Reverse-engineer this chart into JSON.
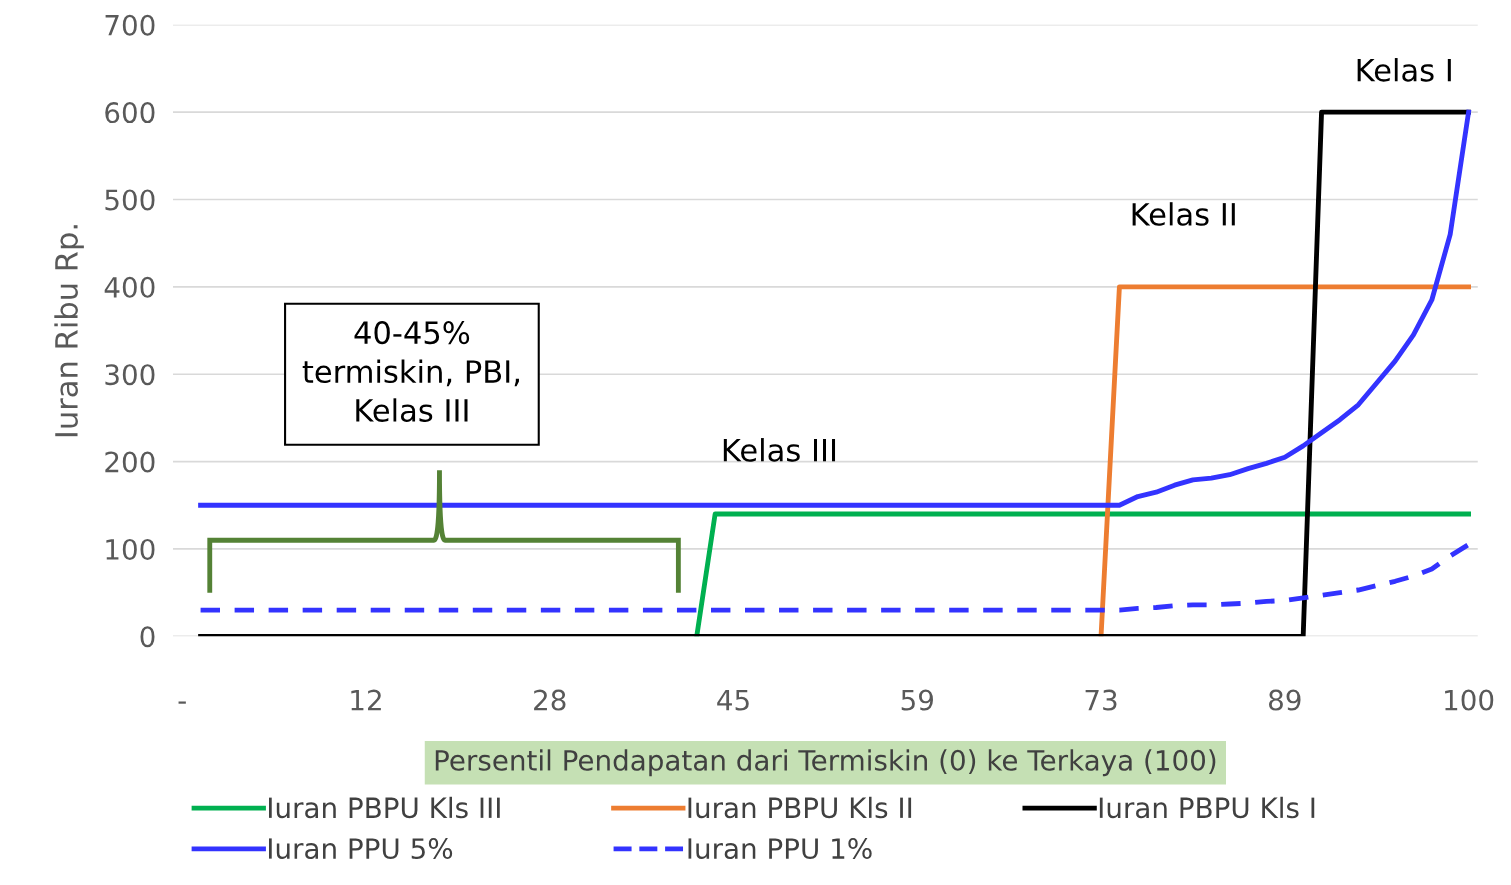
{
  "chart_data": {
    "type": "line",
    "xlabel": "Persentil Pendapatan dari Termiskin (0) ke Terkaya (100)",
    "ylabel": "Iuran Ribu Rp.",
    "categories": [
      "-",
      null,
      null,
      null,
      null,
      null,
      null,
      null,
      null,
      null,
      "12",
      null,
      null,
      null,
      null,
      null,
      null,
      null,
      null,
      null,
      "28",
      null,
      null,
      null,
      null,
      null,
      null,
      null,
      null,
      null,
      "45",
      null,
      null,
      null,
      null,
      null,
      null,
      null,
      null,
      null,
      "59",
      null,
      null,
      null,
      null,
      null,
      null,
      null,
      null,
      null,
      "73",
      null,
      null,
      null,
      null,
      null,
      null,
      null,
      null,
      null,
      "89",
      null,
      null,
      null,
      null,
      null,
      null,
      null,
      null,
      null,
      "100"
    ],
    "series": [
      {
        "name": "Iuran PBPU Kls III",
        "color": "#00b050",
        "values": [
          null,
          null,
          null,
          null,
          null,
          null,
          null,
          null,
          null,
          null,
          null,
          null,
          null,
          null,
          null,
          null,
          null,
          null,
          null,
          null,
          null,
          null,
          null,
          null,
          null,
          null,
          null,
          null,
          0,
          140,
          140,
          140,
          140,
          140,
          140,
          140,
          140,
          140,
          140,
          140,
          140,
          140,
          140,
          140,
          140,
          140,
          140,
          140,
          140,
          140,
          140,
          140,
          140,
          140,
          140,
          140,
          140,
          140,
          140,
          140,
          140,
          140,
          140,
          140,
          140,
          140,
          140,
          140,
          140,
          140,
          140
        ]
      },
      {
        "name": "Iuran PBPU Kls II",
        "color": "#ed7d31",
        "values": [
          null,
          null,
          null,
          null,
          null,
          null,
          null,
          null,
          null,
          null,
          null,
          null,
          null,
          null,
          null,
          null,
          null,
          null,
          null,
          null,
          null,
          null,
          null,
          null,
          null,
          null,
          null,
          null,
          null,
          null,
          null,
          null,
          null,
          null,
          null,
          null,
          null,
          null,
          null,
          null,
          null,
          null,
          null,
          null,
          null,
          null,
          null,
          null,
          null,
          null,
          0,
          400,
          400,
          400,
          400,
          400,
          400,
          400,
          400,
          400,
          400,
          400,
          400,
          400,
          400,
          400,
          400,
          400,
          400,
          400,
          400
        ]
      },
      {
        "name": "Iuran PBPU Kls I",
        "color": "#000000",
        "values": [
          null,
          0,
          0,
          0,
          0,
          0,
          0,
          0,
          0,
          0,
          0,
          0,
          0,
          0,
          0,
          0,
          0,
          0,
          0,
          0,
          0,
          0,
          0,
          0,
          0,
          0,
          0,
          0,
          0,
          0,
          0,
          0,
          0,
          0,
          0,
          0,
          0,
          0,
          0,
          0,
          0,
          0,
          0,
          0,
          0,
          0,
          0,
          0,
          0,
          0,
          0,
          0,
          0,
          0,
          0,
          0,
          0,
          0,
          0,
          0,
          0,
          0,
          600,
          600,
          600,
          600,
          600,
          600,
          600,
          600,
          600
        ]
      },
      {
        "name": "Iuran PPU 5%",
        "color": "#3333ff",
        "values": [
          null,
          150,
          150,
          150,
          150,
          150,
          150,
          150,
          150,
          150,
          150,
          150,
          150,
          150,
          150,
          150,
          150,
          150,
          150,
          150,
          150,
          150,
          150,
          150,
          150,
          150,
          150,
          150,
          150,
          150,
          150,
          150,
          150,
          150,
          150,
          150,
          150,
          150,
          150,
          150,
          150,
          150,
          150,
          150,
          150,
          150,
          150,
          150,
          150,
          150,
          150,
          150,
          160,
          165,
          173,
          179,
          181,
          185,
          192,
          198,
          205,
          218,
          233,
          248,
          265,
          290,
          315,
          345,
          385,
          460,
          600
        ]
      },
      {
        "name": "Iuran PPU 1%",
        "color": "#3333ff",
        "line_style": "dashed",
        "values": [
          null,
          30,
          30,
          30,
          30,
          30,
          30,
          30,
          30,
          30,
          30,
          30,
          30,
          30,
          30,
          30,
          30,
          30,
          30,
          30,
          30,
          30,
          30,
          30,
          30,
          30,
          30,
          30,
          30,
          30,
          30,
          30,
          30,
          30,
          30,
          30,
          30,
          30,
          30,
          30,
          30,
          30,
          30,
          30,
          30,
          30,
          30,
          30,
          30,
          30,
          30,
          30,
          32,
          33,
          35,
          36,
          36,
          37,
          38,
          40,
          41,
          44,
          47,
          50,
          53,
          58,
          63,
          69,
          77,
          92,
          105
        ]
      }
    ],
    "ylim": [
      0,
      700
    ],
    "yticks": [
      0,
      100,
      200,
      300,
      400,
      500,
      600,
      700
    ],
    "grid": "y",
    "legend": "bottom",
    "marker": "none",
    "line_style": "solid",
    "annotations": [
      "Kelas I",
      "Kelas II",
      "Kelas III",
      "40-45%\ntermiskin, PBI,\nKelas III"
    ]
  }
}
